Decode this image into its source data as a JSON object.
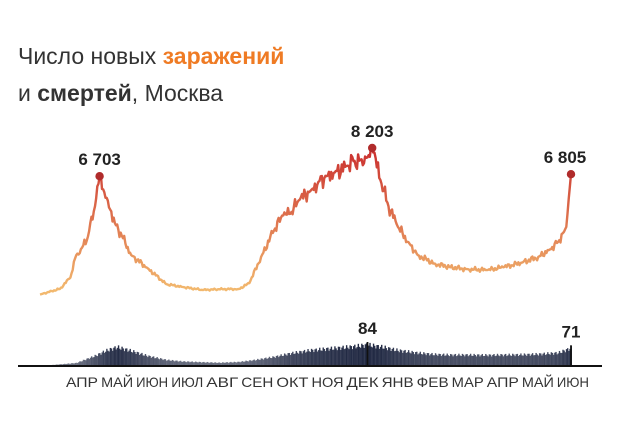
{
  "title": {
    "t1": "Число новых ",
    "t2": "заражений",
    "t3": "и ",
    "t4": "смертей",
    "t5": ", Москва"
  },
  "colors": {
    "infection_start": "#f2b86e",
    "infection_end": "#c8272b",
    "deaths": "#222a44",
    "peak_marker": "#b02b2b"
  },
  "chart_data": {
    "type": "line",
    "x_tick_labels": [
      "АПР",
      "МАЙ",
      "ИЮН",
      "ИЮЛ",
      "АВГ",
      "СЕН",
      "ОКТ",
      "НОЯ",
      "ДЕК",
      "ЯНВ",
      "ФЕВ",
      "МАР",
      "АПР",
      "МАЙ",
      "ИЮН"
    ],
    "series": [
      {
        "key": "infections",
        "x": [
          "2020-03-15",
          "2020-04-01",
          "2020-04-10",
          "2020-04-15",
          "2020-04-20",
          "2020-04-25",
          "2020-05-01",
          "2020-05-05",
          "2020-05-08",
          "2020-05-12",
          "2020-05-18",
          "2020-05-25",
          "2020-06-01",
          "2020-06-15",
          "2020-07-01",
          "2020-07-15",
          "2020-08-01",
          "2020-08-15",
          "2020-09-01",
          "2020-09-10",
          "2020-09-20",
          "2020-10-01",
          "2020-10-08",
          "2020-10-15",
          "2020-10-22",
          "2020-11-01",
          "2020-11-08",
          "2020-11-15",
          "2020-11-22",
          "2020-12-01",
          "2020-12-08",
          "2020-12-15",
          "2020-12-20",
          "2020-12-24",
          "2020-12-31",
          "2021-01-07",
          "2021-01-15",
          "2021-01-25",
          "2021-02-01",
          "2021-02-15",
          "2021-03-01",
          "2021-03-15",
          "2021-04-01",
          "2021-04-15",
          "2021-05-01",
          "2021-05-15",
          "2021-05-25",
          "2021-06-01",
          "2021-06-08",
          "2021-06-12"
        ],
        "y": [
          400,
          700,
          1300,
          2500,
          2900,
          3500,
          5100,
          6703,
          6000,
          5400,
          4200,
          3400,
          2500,
          1800,
          950,
          800,
          640,
          680,
          690,
          1000,
          2400,
          3800,
          4600,
          4700,
          5400,
          5900,
          6400,
          6700,
          6900,
          7200,
          7500,
          7600,
          7700,
          8203,
          6500,
          5100,
          4000,
          3100,
          2500,
          2050,
          1850,
          1750,
          1700,
          1850,
          2100,
          2400,
          2800,
          3200,
          4000,
          6805
        ]
      },
      {
        "key": "deaths",
        "x": [
          "2020-03-15",
          "2020-04-15",
          "2020-05-01",
          "2020-05-10",
          "2020-05-20",
          "2020-06-01",
          "2020-06-15",
          "2020-07-01",
          "2020-07-15",
          "2020-08-01",
          "2020-08-15",
          "2020-09-01",
          "2020-09-15",
          "2020-10-01",
          "2020-10-15",
          "2020-11-01",
          "2020-11-15",
          "2020-12-01",
          "2020-12-10",
          "2020-12-20",
          "2021-01-01",
          "2021-01-15",
          "2021-02-01",
          "2021-02-15",
          "2021-03-01",
          "2021-03-15",
          "2021-04-01",
          "2021-04-15",
          "2021-05-01",
          "2021-05-15",
          "2021-06-01",
          "2021-06-12"
        ],
        "y": [
          0,
          12,
          40,
          60,
          75,
          60,
          40,
          24,
          18,
          15,
          13,
          16,
          24,
          36,
          50,
          62,
          68,
          74,
          78,
          84,
          76,
          62,
          52,
          46,
          44,
          44,
          43,
          44,
          45,
          47,
          52,
          71
        ]
      }
    ],
    "annotations": [
      {
        "series": "infections",
        "x": "2020-05-05",
        "label": "6 703"
      },
      {
        "series": "infections",
        "x": "2020-12-24",
        "label": "8 203"
      },
      {
        "series": "infections",
        "x": "2021-06-12",
        "label": "6 805"
      },
      {
        "series": "deaths",
        "x": "2020-12-20",
        "label": "84"
      },
      {
        "series": "deaths",
        "x": "2021-06-12",
        "label": "71"
      }
    ]
  }
}
